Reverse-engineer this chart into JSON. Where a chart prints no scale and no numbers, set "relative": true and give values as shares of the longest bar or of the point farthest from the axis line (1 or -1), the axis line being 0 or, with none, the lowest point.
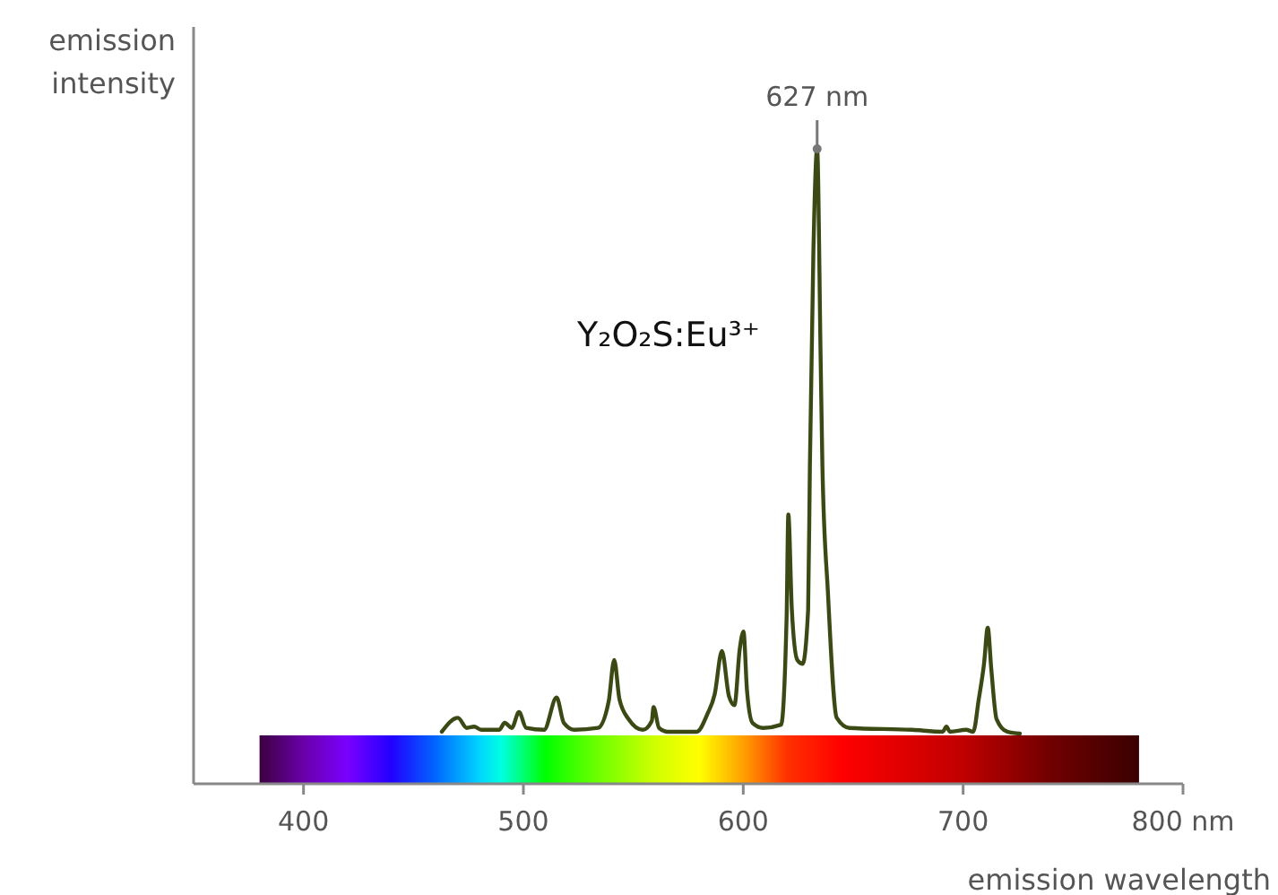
{
  "chart_data": {
    "type": "line",
    "relative": true,
    "xlabel": "emission wavelength",
    "ylabel": "emission intensity",
    "xlim": [
      350,
      800
    ],
    "xticks": [
      400,
      500,
      600,
      700,
      {
        "value": 800,
        "label": "800 nm"
      }
    ],
    "marker": "none",
    "line_style": "solid",
    "annotations": [
      {
        "text": "627 nm",
        "x": 633.6,
        "y": 1
      },
      "Y₂O₂S:Eu³⁺"
    ],
    "series": [
      {
        "color": "#3b4a14",
        "x": [
          462.9,
          470.2,
          474.3,
          477.6,
          480.8,
          489.0,
          491.5,
          494.7,
          498.0,
          501.3,
          509.4,
          515.1,
          518.4,
          523.3,
          533.9,
          538.8,
          541.3,
          543.7,
          547.8,
          554.3,
          558.4,
          559.2,
          561.7,
          565.8,
          578.8,
          583.7,
          587.0,
          590.3,
          593.5,
          596.0,
          598.4,
          600.1,
          601.7,
          604.2,
          609.1,
          617.2,
          619.7,
          620.5,
          622.1,
          624.6,
          627.0,
          629.5,
          630.3,
          631.9,
          633.6,
          635.2,
          636.0,
          638.5,
          642.5,
          648.3,
          676.8,
          690.7,
          692.4,
          694.0,
          701.4,
          704.6,
          707.1,
          709.5,
          711.2,
          712.8,
          715.2,
          720.1,
          725.8
        ],
        "values": [
          0.082,
          0.104,
          0.088,
          0.09,
          0.085,
          0.085,
          0.096,
          0.088,
          0.113,
          0.088,
          0.085,
          0.136,
          0.096,
          0.085,
          0.088,
          0.13,
          0.195,
          0.133,
          0.102,
          0.085,
          0.099,
          0.121,
          0.088,
          0.082,
          0.082,
          0.11,
          0.141,
          0.209,
          0.138,
          0.124,
          0.212,
          0.24,
          0.147,
          0.096,
          0.088,
          0.093,
          0.26,
          0.424,
          0.274,
          0.195,
          0.189,
          0.274,
          0.5,
          0.839,
          1,
          0.669,
          0.5,
          0.302,
          0.104,
          0.088,
          0.085,
          0.082,
          0.09,
          0.082,
          0.085,
          0.082,
          0.133,
          0.189,
          0.246,
          0.181,
          0.102,
          0.082,
          0.079
        ]
      }
    ]
  }
}
